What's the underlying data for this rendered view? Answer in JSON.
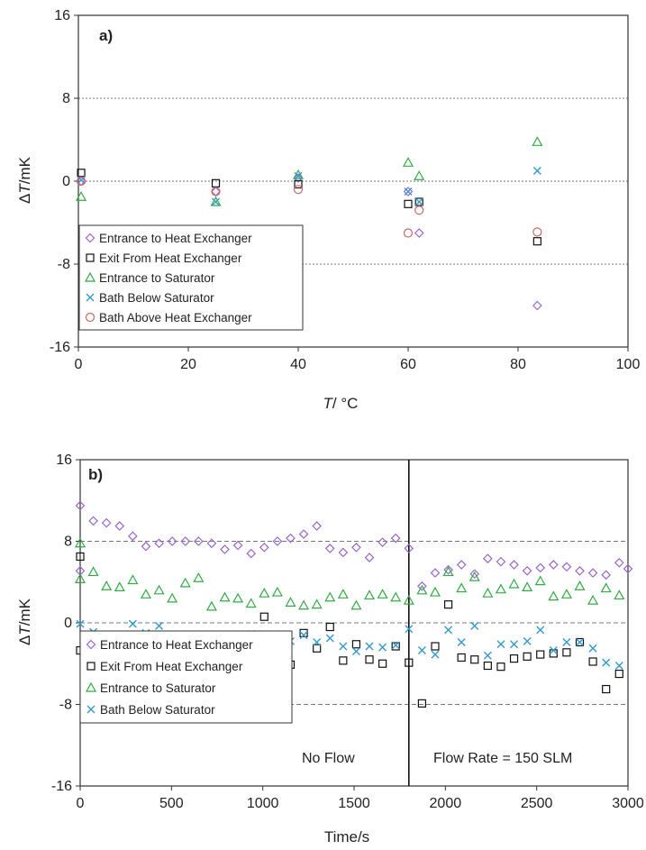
{
  "colors": {
    "diamond": "#9966cc",
    "square": "#111111",
    "triangle": "#33aa44",
    "cross": "#3399cc",
    "circle": "#cc6666",
    "grid": "#777777",
    "axis": "#333333"
  },
  "chart_data": [
    {
      "type": "scatter",
      "panel_label": "a)",
      "xlabel_italic": "T",
      "xlabel_rest": "/ °C",
      "ylabel_prefix": "Δ",
      "ylabel_italic": "T",
      "ylabel_rest": "/mK",
      "xlim": [
        0,
        100
      ],
      "ylim": [
        -16,
        16
      ],
      "xticks": [
        "0",
        "20",
        "40",
        "60",
        "80",
        "100"
      ],
      "yticks": [
        "-16",
        "-8",
        "0",
        "8",
        "16"
      ],
      "gridlines_y": [
        -8,
        0,
        8
      ],
      "grid_style": "dotted",
      "legend_position": "bottom-left",
      "series": [
        {
          "name": "Entrance to Heat Exchanger",
          "marker": "diamond",
          "points": [
            [
              0.5,
              0.0
            ],
            [
              25,
              -1.0
            ],
            [
              40,
              0.3
            ],
            [
              60,
              -1.0
            ],
            [
              62,
              -5.0
            ],
            [
              83.5,
              -12.0
            ]
          ]
        },
        {
          "name": "Exit From Heat Exchanger",
          "marker": "square",
          "points": [
            [
              0.5,
              0.8
            ],
            [
              25,
              -0.2
            ],
            [
              40,
              -0.3
            ],
            [
              60,
              -2.2
            ],
            [
              62,
              -2.0
            ],
            [
              83.5,
              -5.8
            ]
          ]
        },
        {
          "name": "Entrance to Saturator",
          "marker": "triangle",
          "points": [
            [
              0.5,
              -1.5
            ],
            [
              25,
              -2.0
            ],
            [
              40,
              0.6
            ],
            [
              60,
              1.8
            ],
            [
              62,
              0.5
            ],
            [
              83.5,
              3.8
            ]
          ]
        },
        {
          "name": "Bath Below Saturator",
          "marker": "cross",
          "points": [
            [
              0.5,
              0.1
            ],
            [
              25,
              -2.0
            ],
            [
              40,
              0.5
            ],
            [
              60,
              -1.0
            ],
            [
              62,
              -2.0
            ],
            [
              83.5,
              1.0
            ]
          ]
        },
        {
          "name": "Bath Above Heat Exchanger",
          "marker": "circle",
          "points": [
            [
              0.5,
              0.0
            ],
            [
              25,
              -1.0
            ],
            [
              40,
              -0.8
            ],
            [
              60,
              -5.0
            ],
            [
              62,
              -2.8
            ],
            [
              83.5,
              -4.9
            ]
          ]
        }
      ]
    },
    {
      "type": "scatter",
      "panel_label": "b)",
      "xlabel": "Time/s",
      "ylabel_prefix": "Δ",
      "ylabel_italic": "T",
      "ylabel_rest": "/mK",
      "xlim": [
        0,
        3000
      ],
      "ylim": [
        -16,
        16
      ],
      "xticks": [
        "0",
        "500",
        "1000",
        "1500",
        "2000",
        "2500",
        "3000"
      ],
      "yticks": [
        "-16",
        "-8",
        "0",
        "8",
        "16"
      ],
      "gridlines_y": [
        -8,
        0,
        8
      ],
      "grid_style": "dashed",
      "divider_x": 1800,
      "annotations": [
        "No Flow",
        "Flow Rate = 150 SLM"
      ],
      "legend_position": "bottom-left",
      "series": [
        {
          "name": "Entrance to Heat Exchanger",
          "marker": "diamond",
          "points": [
            [
              0,
              11.5
            ],
            [
              0,
              5.1
            ],
            [
              72,
              10.0
            ],
            [
              144,
              9.8
            ],
            [
              216,
              9.5
            ],
            [
              288,
              8.5
            ],
            [
              360,
              7.5
            ],
            [
              432,
              7.8
            ],
            [
              504,
              8.0
            ],
            [
              576,
              8.0
            ],
            [
              648,
              8.0
            ],
            [
              720,
              7.8
            ],
            [
              792,
              7.2
            ],
            [
              864,
              7.6
            ],
            [
              936,
              6.8
            ],
            [
              1008,
              7.4
            ],
            [
              1080,
              8.0
            ],
            [
              1152,
              8.3
            ],
            [
              1224,
              8.7
            ],
            [
              1296,
              9.5
            ],
            [
              1368,
              7.3
            ],
            [
              1440,
              6.9
            ],
            [
              1512,
              7.4
            ],
            [
              1584,
              6.4
            ],
            [
              1656,
              7.9
            ],
            [
              1728,
              8.3
            ],
            [
              1800,
              7.3
            ],
            [
              1872,
              3.6
            ],
            [
              1944,
              4.9
            ],
            [
              2016,
              5.2
            ],
            [
              2088,
              5.7
            ],
            [
              2160,
              4.8
            ],
            [
              2232,
              6.3
            ],
            [
              2304,
              6.0
            ],
            [
              2376,
              5.7
            ],
            [
              2448,
              5.1
            ],
            [
              2520,
              5.4
            ],
            [
              2592,
              5.7
            ],
            [
              2664,
              5.5
            ],
            [
              2736,
              5.1
            ],
            [
              2808,
              4.9
            ],
            [
              2880,
              4.7
            ],
            [
              2952,
              5.9
            ],
            [
              3000,
              5.3
            ]
          ]
        },
        {
          "name": "Exit From Heat Exchanger",
          "marker": "square",
          "points": [
            [
              0,
              6.5
            ],
            [
              0,
              -2.7
            ],
            [
              72,
              -1.4
            ],
            [
              144,
              -2.9
            ],
            [
              216,
              -1.2
            ],
            [
              288,
              -1.4
            ],
            [
              360,
              -3.7
            ],
            [
              432,
              -1.9
            ],
            [
              504,
              -4.2
            ],
            [
              576,
              -1.6
            ],
            [
              648,
              -3.2
            ],
            [
              720,
              -3.0
            ],
            [
              792,
              -3.2
            ],
            [
              864,
              -2.0
            ],
            [
              936,
              -4.5
            ],
            [
              1008,
              0.6
            ],
            [
              1080,
              -2.8
            ],
            [
              1152,
              -4.1
            ],
            [
              1224,
              -1.0
            ],
            [
              1296,
              -2.5
            ],
            [
              1368,
              -0.4
            ],
            [
              1440,
              -3.7
            ],
            [
              1512,
              -2.1
            ],
            [
              1584,
              -3.6
            ],
            [
              1656,
              -4.0
            ],
            [
              1728,
              -2.3
            ],
            [
              1800,
              -3.9
            ],
            [
              1872,
              -7.9
            ],
            [
              1944,
              -2.3
            ],
            [
              2016,
              1.8
            ],
            [
              2088,
              -3.4
            ],
            [
              2160,
              -3.6
            ],
            [
              2232,
              -4.2
            ],
            [
              2304,
              -4.3
            ],
            [
              2376,
              -3.5
            ],
            [
              2448,
              -3.3
            ],
            [
              2520,
              -3.1
            ],
            [
              2592,
              -3.0
            ],
            [
              2664,
              -2.9
            ],
            [
              2736,
              -1.9
            ],
            [
              2808,
              -3.8
            ],
            [
              2880,
              -6.5
            ],
            [
              2952,
              -5.0
            ]
          ]
        },
        {
          "name": "Entrance to Saturator",
          "marker": "triangle",
          "points": [
            [
              0,
              7.8
            ],
            [
              0,
              4.3
            ],
            [
              72,
              5.0
            ],
            [
              144,
              3.6
            ],
            [
              216,
              3.5
            ],
            [
              288,
              4.2
            ],
            [
              360,
              2.8
            ],
            [
              432,
              3.2
            ],
            [
              504,
              2.4
            ],
            [
              576,
              3.9
            ],
            [
              648,
              4.4
            ],
            [
              720,
              1.6
            ],
            [
              792,
              2.5
            ],
            [
              864,
              2.4
            ],
            [
              936,
              1.9
            ],
            [
              1008,
              2.9
            ],
            [
              1080,
              3.0
            ],
            [
              1152,
              2.0
            ],
            [
              1224,
              1.7
            ],
            [
              1296,
              1.8
            ],
            [
              1368,
              2.5
            ],
            [
              1440,
              2.8
            ],
            [
              1512,
              1.7
            ],
            [
              1584,
              2.7
            ],
            [
              1656,
              2.8
            ],
            [
              1728,
              2.5
            ],
            [
              1800,
              2.2
            ],
            [
              1872,
              3.2
            ],
            [
              1944,
              3.0
            ],
            [
              2016,
              5.0
            ],
            [
              2088,
              3.4
            ],
            [
              2160,
              4.5
            ],
            [
              2232,
              2.9
            ],
            [
              2304,
              3.3
            ],
            [
              2376,
              3.8
            ],
            [
              2448,
              3.5
            ],
            [
              2520,
              4.1
            ],
            [
              2592,
              2.6
            ],
            [
              2664,
              2.8
            ],
            [
              2736,
              3.6
            ],
            [
              2808,
              2.2
            ],
            [
              2880,
              3.4
            ],
            [
              2952,
              2.7
            ]
          ]
        },
        {
          "name": "Bath Below Saturator",
          "marker": "cross",
          "points": [
            [
              0,
              -0.1
            ],
            [
              72,
              -0.9
            ],
            [
              144,
              -2.2
            ],
            [
              216,
              -1.9
            ],
            [
              288,
              -0.1
            ],
            [
              360,
              -1.0
            ],
            [
              432,
              -0.3
            ],
            [
              504,
              -1.6
            ],
            [
              576,
              -1.4
            ],
            [
              648,
              -2.9
            ],
            [
              720,
              -1.7
            ],
            [
              792,
              -3.0
            ],
            [
              864,
              -1.3
            ],
            [
              936,
              -1.1
            ],
            [
              1008,
              -1.5
            ],
            [
              1080,
              -2.4
            ],
            [
              1152,
              -1.8
            ],
            [
              1224,
              -1.2
            ],
            [
              1296,
              -1.9
            ],
            [
              1368,
              -1.5
            ],
            [
              1440,
              -2.3
            ],
            [
              1512,
              -2.8
            ],
            [
              1584,
              -2.3
            ],
            [
              1656,
              -2.4
            ],
            [
              1728,
              -2.2
            ],
            [
              1800,
              -0.6
            ],
            [
              1872,
              -2.7
            ],
            [
              1944,
              -3.1
            ],
            [
              2016,
              -0.7
            ],
            [
              2088,
              -1.9
            ],
            [
              2160,
              -0.3
            ],
            [
              2232,
              -3.2
            ],
            [
              2304,
              -2.1
            ],
            [
              2376,
              -2.1
            ],
            [
              2448,
              -1.8
            ],
            [
              2520,
              -0.7
            ],
            [
              2592,
              -2.7
            ],
            [
              2664,
              -1.9
            ],
            [
              2736,
              -1.9
            ],
            [
              2808,
              -2.5
            ],
            [
              2880,
              -3.9
            ],
            [
              2952,
              -4.2
            ]
          ]
        }
      ]
    }
  ]
}
